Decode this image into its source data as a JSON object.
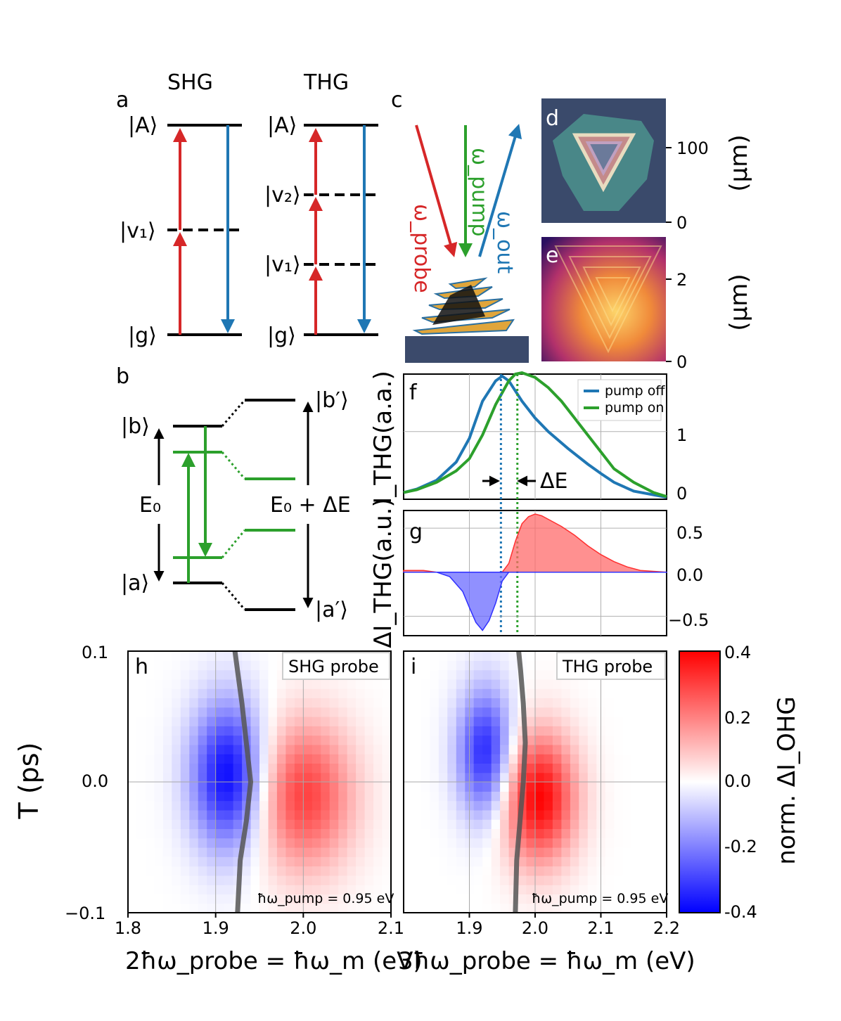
{
  "panel_a": {
    "letter": "a",
    "shg_title": "SHG",
    "thg_title": "THG",
    "levels_shg": [
      "|A⟩",
      "|v₁⟩",
      "|g⟩"
    ],
    "levels_thg": [
      "|A⟩",
      "|v₂⟩",
      "|v₁⟩",
      "|g⟩"
    ]
  },
  "panel_b": {
    "letter": "b",
    "left_levels": [
      "|b⟩",
      "|a⟩"
    ],
    "right_levels": [
      "|b′⟩",
      "|a′⟩"
    ],
    "gap_left": "E₀",
    "gap_right": "E₀ + ΔE"
  },
  "panel_c": {
    "letter": "c",
    "beams": [
      "ω_probe",
      "ω_pump",
      "ω_out"
    ],
    "colors": {
      "probe": "#d62728",
      "pump": "#2ca02c",
      "out": "#1f77b4"
    }
  },
  "panel_d": {
    "letter": "d",
    "axis_label": "(μm)",
    "ticks": [
      "100",
      "0"
    ]
  },
  "panel_e": {
    "letter": "e",
    "axis_label": "(μm)",
    "ticks": [
      "2",
      "0"
    ]
  },
  "chart_data": [
    {
      "panel": "f",
      "type": "line",
      "ylabel": "I_THG(a.a.)",
      "y_ticks": [
        "1",
        "0"
      ],
      "ylim": [
        0,
        1.85
      ],
      "xlim": [
        1.8,
        2.2
      ],
      "annotation": "ΔE",
      "series": [
        {
          "name": "pump off",
          "color": "#1f77b4",
          "x": [
            1.8,
            1.82,
            1.85,
            1.88,
            1.9,
            1.92,
            1.94,
            1.95,
            1.96,
            1.98,
            2.0,
            2.02,
            2.05,
            2.08,
            2.1,
            2.12,
            2.15,
            2.2
          ],
          "y": [
            0.1,
            0.15,
            0.28,
            0.55,
            0.9,
            1.45,
            1.75,
            1.82,
            1.75,
            1.45,
            1.2,
            1.0,
            0.75,
            0.52,
            0.38,
            0.25,
            0.12,
            0.03
          ]
        },
        {
          "name": "pump on",
          "color": "#2ca02c",
          "x": [
            1.8,
            1.82,
            1.85,
            1.88,
            1.9,
            1.92,
            1.94,
            1.96,
            1.97,
            1.98,
            2.0,
            2.02,
            2.04,
            2.06,
            2.08,
            2.1,
            2.12,
            2.15,
            2.18,
            2.2
          ],
          "y": [
            0.1,
            0.14,
            0.25,
            0.42,
            0.6,
            0.95,
            1.4,
            1.75,
            1.85,
            1.87,
            1.8,
            1.65,
            1.45,
            1.2,
            0.95,
            0.7,
            0.45,
            0.25,
            0.1,
            0.04
          ]
        }
      ],
      "markers": [
        1.948,
        1.973
      ]
    },
    {
      "panel": "g",
      "type": "area",
      "ylabel": "ΔI_THG(a.u.)",
      "y_ticks": [
        "0.5",
        "0.0",
        "−0.5"
      ],
      "ylim": [
        -0.72,
        0.7
      ],
      "xlim": [
        1.8,
        2.2
      ],
      "x": [
        1.8,
        1.83,
        1.85,
        1.87,
        1.89,
        1.9,
        1.91,
        1.92,
        1.93,
        1.94,
        1.95,
        1.96,
        1.97,
        1.98,
        1.99,
        2.0,
        2.01,
        2.02,
        2.04,
        2.06,
        2.08,
        2.1,
        2.12,
        2.14,
        2.16,
        2.18,
        2.2
      ],
      "y": [
        0.02,
        0.02,
        0.0,
        -0.05,
        -0.22,
        -0.4,
        -0.57,
        -0.66,
        -0.55,
        -0.35,
        -0.1,
        0.1,
        0.35,
        0.55,
        0.63,
        0.66,
        0.64,
        0.6,
        0.52,
        0.42,
        0.3,
        0.2,
        0.12,
        0.06,
        0.02,
        0.01,
        0.0
      ],
      "colors": {
        "pos": "#ff6b6b",
        "neg": "#6b6bff"
      },
      "markers": [
        1.948,
        1.973
      ]
    },
    {
      "panel": "h",
      "type": "heatmap",
      "label": "SHG probe",
      "note": "ħω_pump = 0.95 eV",
      "xlim": [
        1.8,
        2.1
      ],
      "ylim": [
        -0.1,
        0.1
      ],
      "x_ticks": [
        "1.8",
        "1.9",
        "2.0",
        "2.1"
      ],
      "y_ticks": [
        "0.1",
        "0.0",
        "−0.1"
      ],
      "blobs": [
        {
          "x": 1.915,
          "y": 0.005,
          "sx": 0.03,
          "sy": 0.04,
          "amp": -0.4
        },
        {
          "x": 2.0,
          "y": -0.01,
          "sx": 0.04,
          "sy": 0.04,
          "amp": 0.3
        }
      ],
      "ridge": {
        "x": [
          1.925,
          1.928,
          1.935,
          1.94,
          1.935,
          1.93,
          1.925,
          1.922
        ],
        "y": [
          -0.1,
          -0.06,
          -0.03,
          0.0,
          0.03,
          0.06,
          0.085,
          0.1
        ]
      }
    },
    {
      "panel": "i",
      "type": "heatmap",
      "label": "THG probe",
      "note": "ħω_pump = 0.95 eV",
      "xlim": [
        1.8,
        2.2
      ],
      "ylim": [
        -0.1,
        0.1
      ],
      "x_ticks": [
        "1.9",
        "2.0",
        "2.1",
        "2.2"
      ],
      "blobs": [
        {
          "x": 1.925,
          "y": 0.022,
          "sx": 0.03,
          "sy": 0.035,
          "amp": -0.35
        },
        {
          "x": 2.005,
          "y": -0.012,
          "sx": 0.04,
          "sy": 0.035,
          "amp": 0.4
        }
      ],
      "ridge": {
        "x": [
          1.97,
          1.972,
          1.977,
          1.982,
          1.985,
          1.982,
          1.978,
          1.975
        ],
        "y": [
          -0.1,
          -0.06,
          -0.03,
          0.0,
          0.03,
          0.06,
          0.085,
          0.1
        ]
      }
    }
  ],
  "colorbar": {
    "label": "norm. ΔI_OHG",
    "ticks": [
      "0.4",
      "0.2",
      "0.0",
      "-0.2",
      "-0.4"
    ],
    "range": [
      -0.4,
      0.4
    ]
  },
  "axes": {
    "y_title": "T (ps)",
    "x_title_h": "2ħω_probe = ħω_m (eV)",
    "x_title_i": "3ħω_probe = ħω_m (eV)"
  }
}
